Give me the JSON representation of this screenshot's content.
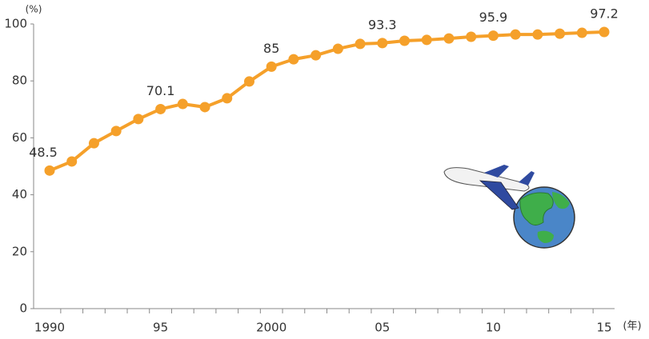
{
  "chart_data": {
    "type": "line",
    "y_unit": "(%)",
    "x_unit": "(年)",
    "categories": [
      "1990",
      null,
      null,
      null,
      null,
      "95",
      null,
      null,
      null,
      null,
      "2000",
      null,
      null,
      null,
      null,
      "05",
      null,
      null,
      null,
      null,
      "10",
      null,
      null,
      null,
      null,
      "15"
    ],
    "series": [
      {
        "color": "#f5a02a",
        "values": [
          48.5,
          51.7,
          58.1,
          62.4,
          66.6,
          70.1,
          71.9,
          70.8,
          73.9,
          79.8,
          85,
          87.6,
          89.0,
          91.3,
          93.0,
          93.3,
          94.1,
          94.4,
          94.9,
          95.5,
          95.9,
          96.3,
          96.3,
          96.6,
          96.9,
          97.2
        ],
        "value_labels": [
          "48.5",
          null,
          null,
          null,
          null,
          "70.1",
          null,
          null,
          null,
          null,
          "85",
          null,
          null,
          null,
          null,
          "93.3",
          null,
          null,
          null,
          null,
          "95.9",
          null,
          null,
          null,
          null,
          "97.2"
        ]
      }
    ],
    "ylim": [
      0,
      100
    ],
    "yticks": [
      0,
      20,
      40,
      60,
      80,
      100
    ],
    "grid": false
  }
}
